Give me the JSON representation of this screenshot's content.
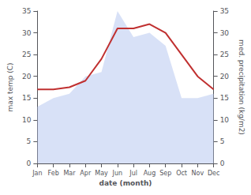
{
  "chart_data": {
    "type": "line",
    "categories": [
      "Jan",
      "Feb",
      "Mar",
      "Apr",
      "May",
      "Jun",
      "Jul",
      "Aug",
      "Sep",
      "Oct",
      "Nov",
      "Dec"
    ],
    "series": [
      {
        "type": "line",
        "color": "#c03030",
        "values": [
          17,
          17,
          17.5,
          19,
          24,
          31,
          31,
          32,
          30,
          25,
          20,
          17
        ]
      },
      {
        "type": "area",
        "color": "#b8c8f0",
        "axis": "y2",
        "values": [
          13,
          15,
          16,
          20,
          21,
          35,
          29,
          30,
          27,
          15,
          15,
          16
        ]
      }
    ],
    "xlabel": "date (month)",
    "ylabel": "max temp (C)",
    "y2label": "med. precipitation (kg/m2)",
    "ylim": [
      0,
      35
    ],
    "yticks": [
      0,
      5,
      10,
      15,
      20,
      25,
      30,
      35
    ],
    "y2lim": [
      0,
      35
    ],
    "y2ticks": [
      0,
      5,
      10,
      15,
      20,
      25,
      30,
      35
    ],
    "grid": false
  }
}
